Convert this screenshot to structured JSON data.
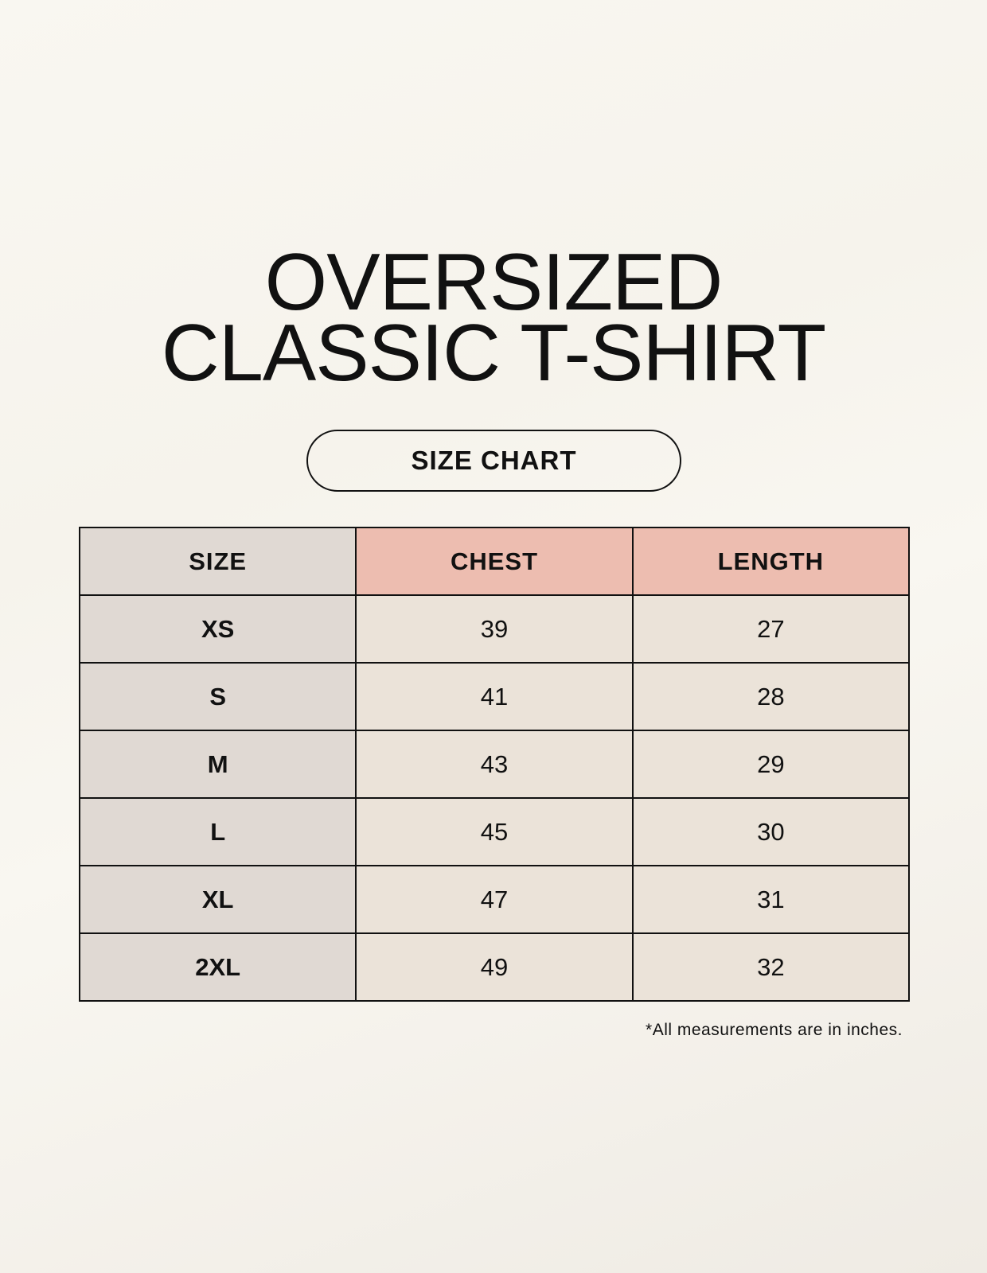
{
  "title": {
    "line1": "OVERSIZED",
    "line2": "CLASSIC T-SHIRT"
  },
  "badge": "SIZE CHART",
  "table": {
    "headers": [
      "SIZE",
      "CHEST",
      "LENGTH"
    ],
    "rows": [
      [
        "XS",
        "39",
        "27"
      ],
      [
        "S",
        "41",
        "28"
      ],
      [
        "M",
        "43",
        "29"
      ],
      [
        "L",
        "45",
        "30"
      ],
      [
        "XL",
        "47",
        "31"
      ],
      [
        "2XL",
        "49",
        "32"
      ]
    ]
  },
  "footnote": "*All measurements are in inches.",
  "colors": {
    "background": "#f8f6f0",
    "size_column": "#e0d9d3",
    "header_accent": "#edbdb0",
    "cell": "#ebe3d9",
    "border": "#111111"
  }
}
